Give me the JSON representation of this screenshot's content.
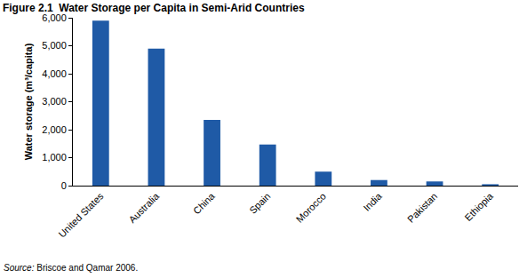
{
  "chart_data": {
    "type": "bar",
    "title": "Figure 2.1  Water Storage per Capita in Semi-Arid Countries",
    "y_label": "Water storage (m³/capita)",
    "source": "Source: Briscoe and Qamar 2006.",
    "categories": [
      "United States",
      "Australia",
      "China",
      "Spain",
      "Morocco",
      "India",
      "Pakistan",
      "Ethiopia"
    ],
    "values": [
      5900,
      4900,
      2350,
      1470,
      500,
      200,
      150,
      50
    ],
    "color": "#1f5aa6",
    "ylim": [
      0,
      6000
    ],
    "yticks": [
      0,
      {
        "value": 1000,
        "label": "1,000"
      },
      {
        "value": 2000,
        "label": "2,000"
      },
      {
        "value": 3000,
        "label": "3,000"
      },
      {
        "value": 4000,
        "label": "4,000"
      },
      {
        "value": 5000,
        "label": "5,000"
      },
      {
        "value": 6000,
        "label": "6,000"
      }
    ],
    "grid": false
  }
}
